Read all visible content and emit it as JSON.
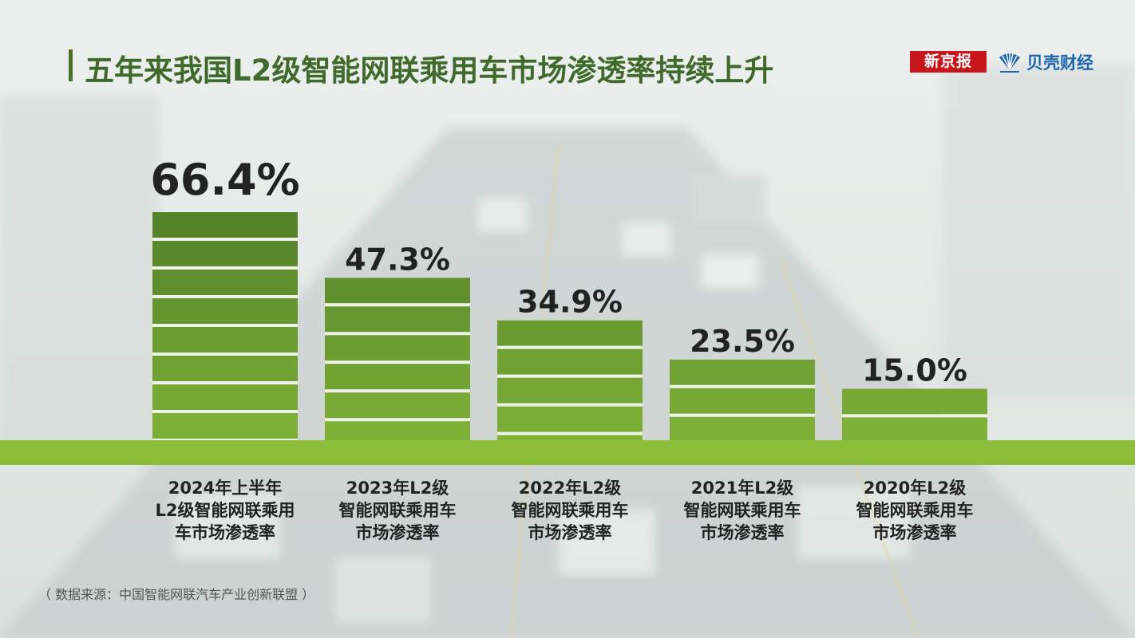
{
  "header": {
    "title": "五年来我国L2级智能网联乘用车市场渗透率持续上升",
    "logo_left": "新京报",
    "logo_right": "贝壳财经"
  },
  "footer": {
    "source": "（ 数据来源：中国智能网联汽车产业创新联盟 ）"
  },
  "colors": {
    "title": "#3f6a2b",
    "bar_dark": "#2f5a1f",
    "bar_light": "#8bbd3a",
    "baseline": "#8bbd3a",
    "logo_red": "#c8161d",
    "logo_blue": "#1f66b0"
  },
  "chart_data": {
    "type": "bar",
    "categories": [
      "2024年上半年\nL2级智能网联乘用\n车市场渗透率",
      "2023年L2级\n智能网联乘用车\n市场渗透率",
      "2022年L2级\n智能网联乘用车\n市场渗透率",
      "2021年L2级\n智能网联乘用车\n市场渗透率",
      "2020年L2级\n智能网联乘用车\n市场渗透率"
    ],
    "values": [
      66.4,
      47.3,
      34.9,
      23.5,
      15.0
    ],
    "value_labels": [
      "66.4%",
      "47.3%",
      "34.9%",
      "23.5%",
      "15.0%"
    ],
    "title": "五年来我国L2级智能网联乘用车市场渗透率持续上升",
    "xlabel": "",
    "ylabel": "",
    "ylim": [
      0,
      70
    ],
    "grid": false,
    "legend": "none"
  }
}
